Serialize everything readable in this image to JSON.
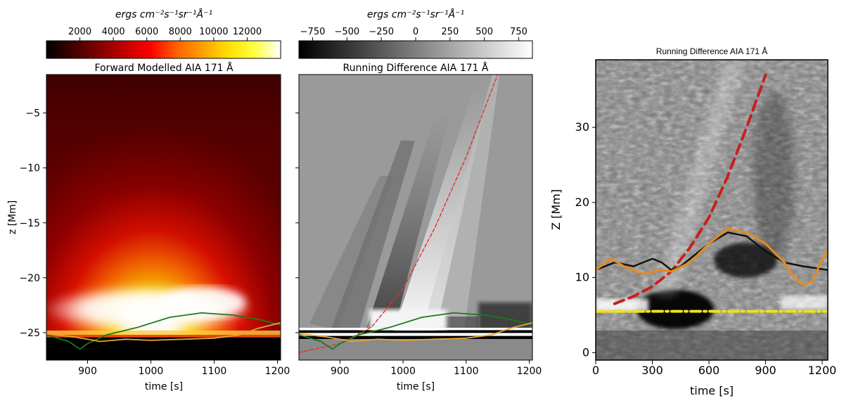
{
  "chart_data": [
    {
      "type": "heatmap",
      "title": "Forward Modelled AIA 171 Å",
      "xlabel": "time [s]",
      "ylabel": "z [Mm]",
      "xlim": [
        835,
        1205
      ],
      "ylim": [
        -27.5,
        -1.5
      ],
      "xticks": [
        "900",
        "1000",
        "1100",
        "1200"
      ],
      "yticks": [
        "−5",
        "−10",
        "−15",
        "−20",
        "−25"
      ],
      "colorbar": {
        "label": "ergs cm⁻²s⁻¹sr⁻¹Å⁻¹",
        "range": [
          0,
          14000
        ],
        "ticks": [
          "2000",
          "4000",
          "6000",
          "8000",
          "10000",
          "12000"
        ],
        "colormap": "hot",
        "colors": [
          "#000000",
          "#400000",
          "#800000",
          "#c00000",
          "#ff0000",
          "#ff6000",
          "#ffa000",
          "#ffe000",
          "#ffff40",
          "#ffffff"
        ]
      },
      "series": [
        {
          "name": "green",
          "color": "#1a7a1a",
          "x": [
            835,
            870,
            888,
            900,
            930,
            980,
            1030,
            1080,
            1130,
            1170,
            1205
          ],
          "y": [
            -25.2,
            -25.8,
            -26.5,
            -26.0,
            -25.2,
            -24.5,
            -23.6,
            -23.2,
            -23.4,
            -23.8,
            -24.3
          ]
        },
        {
          "name": "orange",
          "color": "#e8a33a",
          "x": [
            835,
            880,
            920,
            960,
            1000,
            1050,
            1100,
            1140,
            1170,
            1205
          ],
          "y": [
            -25.1,
            -25.4,
            -25.8,
            -25.6,
            -25.7,
            -25.6,
            -25.5,
            -25.2,
            -24.6,
            -24.1
          ]
        }
      ]
    },
    {
      "type": "heatmap",
      "title": "Running Difference AIA 171 Å",
      "xlabel": "time [s]",
      "xlim": [
        835,
        1205
      ],
      "ylim": [
        -27.5,
        -1.5
      ],
      "xticks": [
        "900",
        "1000",
        "1100",
        "1200"
      ],
      "colorbar": {
        "label": "ergs cm⁻²s⁻¹sr⁻¹Å⁻¹",
        "range": [
          -850,
          850
        ],
        "ticks": [
          "−750",
          "−500",
          "−250",
          "0",
          "250",
          "500",
          "750"
        ],
        "colormap": "gray",
        "colors": [
          "#000000",
          "#ffffff"
        ]
      },
      "series": [
        {
          "name": "red-dashed",
          "color": "#e0302a",
          "x": [
            835,
            900,
            950,
            1000,
            1050,
            1100,
            1150
          ],
          "y": [
            -26.8,
            -26.0,
            -24.5,
            -21.0,
            -15.5,
            -9.0,
            -1.5
          ]
        },
        {
          "name": "green",
          "color": "#1a7a1a",
          "x": [
            835,
            870,
            888,
            900,
            930,
            980,
            1030,
            1080,
            1130,
            1170,
            1205
          ],
          "y": [
            -25.2,
            -25.8,
            -26.5,
            -26.0,
            -25.2,
            -24.5,
            -23.6,
            -23.2,
            -23.4,
            -23.8,
            -24.3
          ]
        },
        {
          "name": "orange",
          "color": "#e8a33a",
          "x": [
            835,
            880,
            920,
            960,
            1000,
            1050,
            1100,
            1140,
            1170,
            1205
          ],
          "y": [
            -25.1,
            -25.4,
            -25.8,
            -25.6,
            -25.7,
            -25.6,
            -25.5,
            -25.2,
            -24.6,
            -24.1
          ]
        }
      ]
    },
    {
      "type": "heatmap",
      "title": "Running Difference AIA 171 Å",
      "xlabel": "time [s]",
      "ylabel": "Z [Mm]",
      "xlim": [
        0,
        1230
      ],
      "ylim": [
        -1,
        39
      ],
      "xticks": [
        "0",
        "300",
        "600",
        "900",
        "1200"
      ],
      "yticks": [
        "0",
        "10",
        "20",
        "30"
      ],
      "series": [
        {
          "name": "red-dashed",
          "color": "#c8201d",
          "x": [
            100,
            200,
            300,
            400,
            500,
            600,
            700,
            800,
            900
          ],
          "y": [
            6.5,
            7.5,
            8.8,
            10.8,
            14.0,
            18.0,
            23.5,
            30.0,
            37.0
          ]
        },
        {
          "name": "yellow-dashdot",
          "color": "#f0e21a",
          "x": [
            0,
            1230
          ],
          "y": [
            5.5,
            5.5
          ]
        },
        {
          "name": "black",
          "color": "#111111",
          "x": [
            0,
            100,
            200,
            300,
            350,
            400,
            450,
            500,
            600,
            700,
            800,
            900,
            1000,
            1100,
            1230
          ],
          "y": [
            11.0,
            12.0,
            11.5,
            12.5,
            12.0,
            11.0,
            11.5,
            12.5,
            14.5,
            16.0,
            15.5,
            13.5,
            12.0,
            11.5,
            11.0
          ]
        },
        {
          "name": "orange",
          "color": "#e88a1a",
          "x": [
            0,
            80,
            150,
            250,
            350,
            400,
            500,
            600,
            700,
            800,
            900,
            1000,
            1050,
            1100,
            1150,
            1200,
            1230
          ],
          "y": [
            11.0,
            12.5,
            11.5,
            10.5,
            11.0,
            10.8,
            12.0,
            14.5,
            16.5,
            16.0,
            14.5,
            12.0,
            10.0,
            9.0,
            9.5,
            12.5,
            13.5
          ]
        }
      ]
    }
  ]
}
